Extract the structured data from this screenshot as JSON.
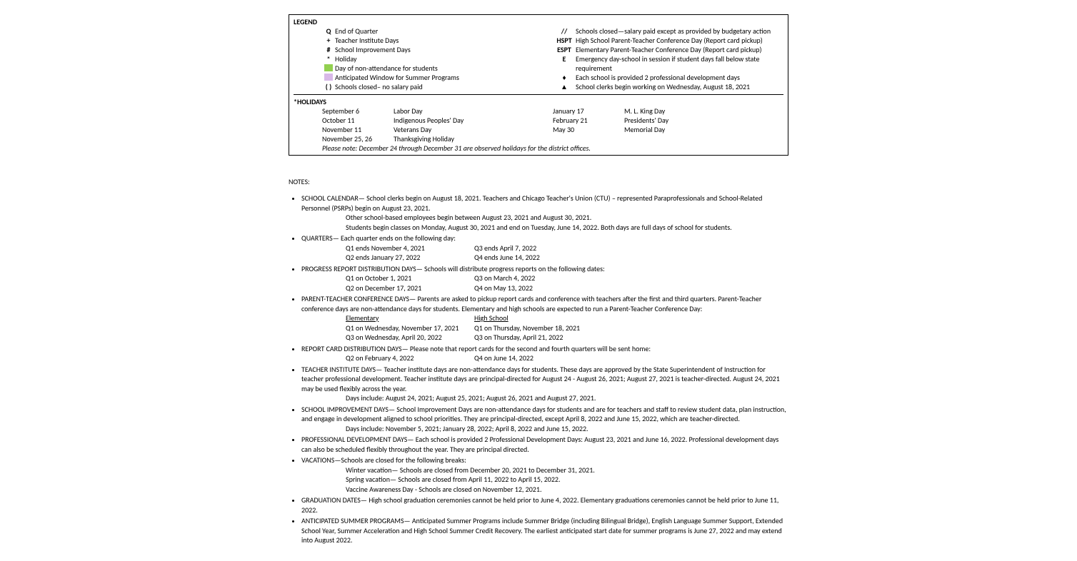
{
  "legend": {
    "title": "LEGEND",
    "left": [
      {
        "sym": "Q",
        "symType": "text",
        "label": "End of Quarter"
      },
      {
        "sym": "+",
        "symType": "text",
        "label": "Teacher Institute Days"
      },
      {
        "sym": "#",
        "symType": "text",
        "label": "School Improvement Days"
      },
      {
        "sym": "*",
        "symType": "text",
        "label": "Holiday"
      },
      {
        "sym": "",
        "symType": "box",
        "color": "#92d050",
        "label": "Day of non-attendance for students"
      },
      {
        "sym": "",
        "symType": "box",
        "color": "#d8b8e8",
        "label": "Anticipated Window for Summer Programs"
      },
      {
        "sym": "( )",
        "symType": "text",
        "label": "Schools closed– no salary paid"
      }
    ],
    "right": [
      {
        "sym": "//",
        "label": "Schools closed—salary paid except as provided by budgetary action"
      },
      {
        "sym": "HSPT",
        "label": "High School Parent-Teacher Conference Day (Report card pickup)"
      },
      {
        "sym": "ESPT",
        "label": "Elementary Parent-Teacher Conference Day (Report card pickup)"
      },
      {
        "sym": "E",
        "label": "Emergency day-school in session if student days fall below state requirement"
      },
      {
        "sym": "♦",
        "label": "Each school is provided 2 professional development days"
      },
      {
        "sym": "▲",
        "label": "School clerks begin working on Wednesday, August 18, 2021"
      }
    ]
  },
  "holidays": {
    "title": "*HOLIDAYS",
    "leftDates": [
      "September 6",
      "October 11",
      "November 11",
      "November 25, 26"
    ],
    "leftNames": [
      "Labor Day",
      "Indigenous Peoples' Day",
      "Veterans Day",
      "Thanksgiving Holiday"
    ],
    "rightDates": [
      "January 17",
      "February 21",
      "May 30"
    ],
    "rightNames": [
      "M. L. King Day",
      "Presidents' Day",
      "Memorial Day"
    ],
    "note": "Please note: December 24 through December 31 are observed holidays for the district offices."
  },
  "notesTitle": "NOTES:",
  "notes": {
    "schoolCal": {
      "lead": "SCHOOL CALENDAR— ",
      "body": "School clerks begin on August 18, 2021. Teachers and Chicago Teacher's Union (CTU) – represented  Paraprofessionals and School-Related Personnel (PSRPs) begin on August 23, 2021.",
      "lines": [
        "Other school-based employees begin between August 23, 2021 and August 30, 2021.",
        "Students begin classes on Monday, August 30, 2021 and end on Tuesday, June 14, 2022. Both days are full days of school for students."
      ]
    },
    "quarters": {
      "lead": "QUARTERS— ",
      "body": "Each quarter ends on the following day:",
      "rows": [
        [
          "Q1 ends November 4, 2021",
          "Q3 ends April 7, 2022"
        ],
        [
          "Q2 ends January 27, 2022",
          "Q4 ends June 14, 2022"
        ]
      ]
    },
    "progress": {
      "lead": "PROGRESS REPORT DISTRIBUTION DAYS— ",
      "body": "Schools will distribute progress reports on the following dates:",
      "rows": [
        [
          "Q1 on October 1, 2021",
          "Q3 on March 4, 2022"
        ],
        [
          "Q2 on December 17, 2021",
          "Q4 on May 13, 2022"
        ]
      ]
    },
    "ptc": {
      "lead": "PARENT-TEACHER CONFERENCE DAYS— ",
      "body": "Parents are asked to pickup report cards and conference with teachers after the first and third quarters. Parent-Teacher conference days are non-attendance days for students. Elementary and high schools are expected to run a Parent-Teacher Conference Day:",
      "h1": "Elementary",
      "h2": "High School",
      "rows": [
        [
          "Q1 on Wednesday, November 17, 2021",
          "Q1 on Thursday, November 18, 2021"
        ],
        [
          "Q3 on Wednesday, April 20, 2022",
          "Q3 on Thursday, April 21, 2022"
        ]
      ]
    },
    "report": {
      "lead": "REPORT CARD DISTRIBUTION DAYS— ",
      "body": "Please note that report cards for the second and fourth quarters will be sent home:",
      "rows": [
        [
          "Q2 on February 4, 2022",
          "Q4 on June 14, 2022"
        ]
      ]
    },
    "tid": {
      "lead": "TEACHER INSTITUTE DAYS— ",
      "body": "Teacher institute days are non-attendance days for students. These days are approved by the State Superintendent of Instruction for teacher professional development. Teacher institute days are principal-directed for August 24 - August 26, 2021; August 27, 2021 is teacher-directed.  August 24, 2021 may be used flexibly across the year.",
      "lines": [
        "Days include: August 24, 2021; August 25, 2021; August 26, 2021 and August 27, 2021."
      ]
    },
    "sid": {
      "lead": "SCHOOL IMPROVEMENT DAYS— ",
      "body": "School Improvement Days are non-attendance days for students and are for teachers and staff to review student data, plan instruction, and engage in development aligned to school priorities. They are principal-directed, except April 8, 2022 and June 15, 2022, which are teacher-directed.",
      "lines": [
        "Days include: November 5, 2021; January 28, 2022; April 8, 2022 and June 15, 2022."
      ]
    },
    "pdd": {
      "lead": "PROFESSIONAL DEVELOPMENT DAYS— ",
      "body": "Each school is provided 2 Professional Development Days: August 23, 2021 and June 16, 2022.  Professional development days can also be scheduled flexibly throughout the year.  They are principal directed."
    },
    "vac": {
      "lead": "VACATIONS—",
      "body": "Schools are closed for the following breaks:",
      "lines": [
        "Winter vacation— Schools are closed from December 20, 2021 to December 31, 2021.",
        "Spring vacation— Schools are closed from April 11, 2022 to April 15, 2022.",
        "Vaccine Awareness Day - Schools are closed on November 12, 2021."
      ]
    },
    "grad": {
      "lead": "GRADUATION DATES— ",
      "body": "High school graduation ceremonies cannot be held prior to June 4, 2022. Elementary graduations ceremonies cannot be held prior to June 11, 2022."
    },
    "summer": {
      "lead": "ANTICIPATED SUMMER PROGRAMS— ",
      "body": "Anticipated Summer Programs include Summer Bridge (including Bilingual Bridge), English Language Summer Support, Extended School Year, Summer Acceleration and High School Summer Credit Recovery.  The earliest anticipated start date for summer programs is June 27, 2022 and may extend into August 2022."
    }
  }
}
